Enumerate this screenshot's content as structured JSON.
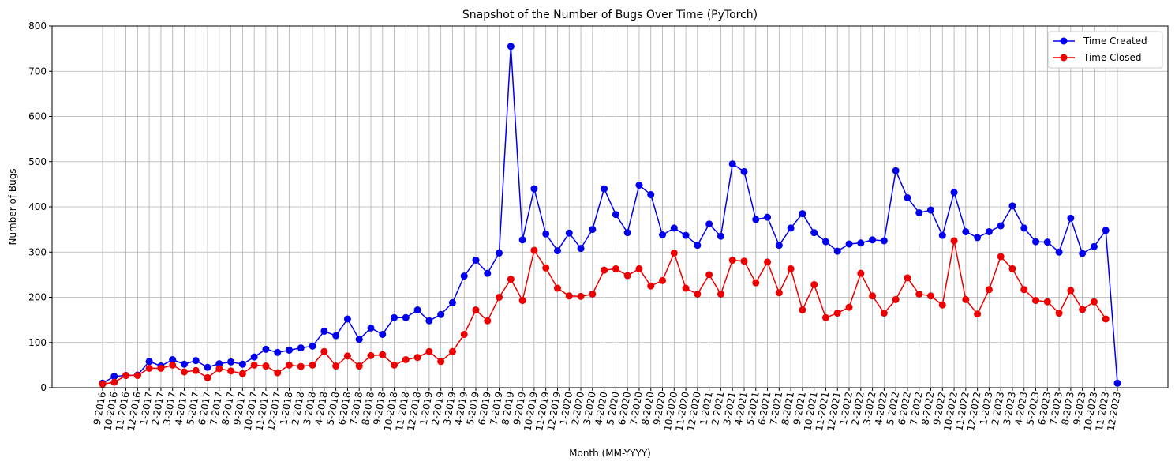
{
  "chart_data": {
    "type": "line",
    "title": "Snapshot of the Number of Bugs Over Time (PyTorch)",
    "x_label": "Month (MM-YYYY)",
    "y_label": "Number of Bugs",
    "categories": [
      "9-2016",
      "10-2016",
      "11-2016",
      "12-2016",
      "1-2017",
      "2-2017",
      "3-2017",
      "4-2017",
      "5-2017",
      "6-2017",
      "7-2017",
      "8-2017",
      "9-2017",
      "10-2017",
      "11-2017",
      "12-2017",
      "1-2018",
      "2-2018",
      "3-2018",
      "4-2018",
      "5-2018",
      "6-2018",
      "7-2018",
      "8-2018",
      "9-2018",
      "10-2018",
      "11-2018",
      "12-2018",
      "1-2019",
      "2-2019",
      "3-2019",
      "4-2019",
      "5-2019",
      "6-2019",
      "7-2019",
      "8-2019",
      "9-2019",
      "10-2019",
      "11-2019",
      "12-2019",
      "1-2020",
      "2-2020",
      "3-2020",
      "4-2020",
      "5-2020",
      "6-2020",
      "7-2020",
      "8-2020",
      "9-2020",
      "10-2020",
      "11-2020",
      "12-2020",
      "1-2021",
      "2-2021",
      "3-2021",
      "4-2021",
      "5-2021",
      "6-2021",
      "7-2021",
      "8-2021",
      "9-2021",
      "10-2021",
      "11-2021",
      "12-2021",
      "1-2022",
      "2-2022",
      "3-2022",
      "4-2022",
      "5-2022",
      "6-2022",
      "7-2022",
      "8-2022",
      "9-2022",
      "10-2022",
      "11-2022",
      "12-2022",
      "1-2023",
      "2-2023",
      "3-2023",
      "4-2023",
      "5-2023",
      "6-2023",
      "7-2023",
      "8-2023",
      "9-2023",
      "10-2023",
      "11-2023",
      "12-2023"
    ],
    "series": [
      {
        "name": "Time Created",
        "color": "#0000ee",
        "values": [
          10,
          25,
          27,
          28,
          58,
          48,
          62,
          52,
          60,
          45,
          53,
          57,
          52,
          68,
          85,
          78,
          83,
          88,
          92,
          125,
          115,
          152,
          107,
          132,
          118,
          155,
          155,
          172,
          148,
          162,
          188,
          247,
          282,
          253,
          298,
          755,
          327,
          440,
          340,
          303,
          342,
          308,
          350,
          440,
          383,
          343,
          448,
          427,
          338,
          353,
          337,
          315,
          362,
          335,
          495,
          478,
          372,
          377,
          315,
          353,
          385,
          343,
          323,
          302,
          318,
          320,
          327,
          325,
          480,
          420,
          387,
          393,
          337,
          432,
          345,
          332,
          345,
          358,
          402,
          353,
          323,
          322,
          300,
          375,
          297,
          312,
          348,
          10
        ]
      },
      {
        "name": "Time Closed",
        "color": "#ee0000",
        "values": [
          8,
          12,
          27,
          27,
          43,
          43,
          50,
          35,
          38,
          22,
          42,
          37,
          31,
          50,
          48,
          33,
          50,
          47,
          50,
          80,
          48,
          70,
          48,
          71,
          73,
          50,
          62,
          67,
          80,
          58,
          80,
          118,
          172,
          148,
          200,
          240,
          193,
          304,
          265,
          220,
          203,
          202,
          207,
          260,
          263,
          248,
          263,
          225,
          237,
          298,
          220,
          207,
          250,
          207,
          282,
          280,
          232,
          278,
          210,
          263,
          172,
          228,
          155,
          165,
          178,
          253,
          203,
          165,
          195,
          243,
          207,
          203,
          183,
          325,
          195,
          163,
          217,
          290,
          263,
          217,
          193,
          190,
          165,
          215,
          173,
          190,
          152,
          null
        ]
      }
    ],
    "ylim": [
      0,
      800
    ],
    "yticks": [
      0,
      100,
      200,
      300,
      400,
      500,
      600,
      700,
      800
    ],
    "grid": true,
    "legend": "upper right"
  }
}
